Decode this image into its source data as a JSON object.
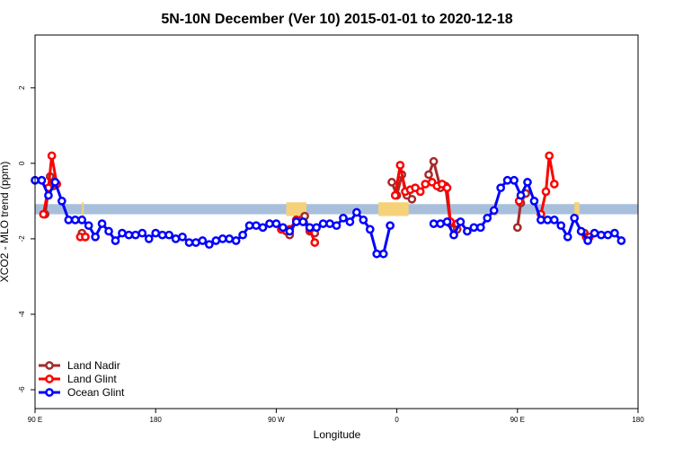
{
  "chart_data": {
    "type": "line",
    "title": "5N-10N December (Ver 10)   2015-01-01 to 2020-12-18",
    "xlabel": "Longitude",
    "ylabel": "XCO2 - MLO trend (ppm)",
    "xlim": [
      -90,
      270
    ],
    "ylim": [
      -6.5,
      3.4
    ],
    "x_ticks": [
      {
        "value": -90,
        "label": "90 E"
      },
      {
        "value": -18,
        "label": "180"
      },
      {
        "value": 54,
        "label": "90 W"
      },
      {
        "value": 126,
        "label": "0"
      },
      {
        "value": 198,
        "label": "90 E"
      },
      {
        "value": 270,
        "label": "180"
      }
    ],
    "y_ticks": [
      {
        "value": 2,
        "label": "2"
      },
      {
        "value": 0,
        "label": "0"
      },
      {
        "value": -2,
        "label": "-2"
      },
      {
        "value": -4,
        "label": "-4"
      },
      {
        "value": -6,
        "label": "-6"
      }
    ],
    "band": {
      "y0": -1.35,
      "y1": -1.08,
      "color": "#a8bfdc"
    },
    "land_segments": [
      {
        "x0": -62,
        "x1": -61,
        "color": "#f5d27a"
      },
      {
        "x0": 60,
        "x1": 72,
        "color": "#f5d27a"
      },
      {
        "x0": 115,
        "x1": 133,
        "color": "#f5d27a"
      },
      {
        "x0": 184,
        "x1": 186,
        "color": "#f5d27a"
      },
      {
        "x0": 232,
        "x1": 235,
        "color": "#f5d27a"
      }
    ],
    "legend": {
      "position": "bottom-left"
    },
    "series": [
      {
        "name": "Land Nadir",
        "color": "#a52a2a",
        "points": [
          [
            -84,
            -1.35
          ],
          [
            -81,
            -0.35
          ],
          [
            -79,
            -0.6
          ],
          [
            -62,
            -1.85
          ],
          [
            -60,
            -1.95
          ],
          [
            60,
            -1.8
          ],
          [
            62,
            -1.9
          ],
          [
            66,
            -1.5
          ],
          [
            69,
            -1.5
          ],
          [
            71,
            -1.4
          ],
          [
            74,
            -1.8
          ],
          [
            77,
            -1.85
          ],
          [
            123,
            -0.5
          ],
          [
            126,
            -0.85
          ],
          [
            129,
            -0.3
          ],
          [
            132,
            -0.85
          ],
          [
            135,
            -0.95
          ],
          [
            145,
            -0.3
          ],
          [
            148,
            0.05
          ],
          [
            152,
            -0.65
          ],
          [
            155,
            -0.6
          ],
          [
            158,
            -1.6
          ],
          [
            162,
            -1.75
          ],
          [
            198,
            -1.7
          ],
          [
            200,
            -1.05
          ],
          [
            203,
            -0.8
          ],
          [
            238,
            -1.85
          ],
          [
            240,
            -1.95
          ]
        ]
      },
      {
        "name": "Land Glint",
        "color": "#ff0000",
        "points": [
          [
            -85,
            -1.35
          ],
          [
            -82,
            -0.65
          ],
          [
            -80,
            0.2
          ],
          [
            -77,
            -0.55
          ],
          [
            -63,
            -1.95
          ],
          [
            -60,
            -1.95
          ],
          [
            57,
            -1.75
          ],
          [
            62,
            -1.75
          ],
          [
            66,
            -1.5
          ],
          [
            70,
            -1.55
          ],
          [
            74,
            -1.75
          ],
          [
            77,
            -2.1
          ],
          [
            125,
            -0.85
          ],
          [
            128,
            -0.05
          ],
          [
            131,
            -0.75
          ],
          [
            134,
            -0.7
          ],
          [
            137,
            -0.65
          ],
          [
            140,
            -0.75
          ],
          [
            143,
            -0.55
          ],
          [
            147,
            -0.5
          ],
          [
            150,
            -0.6
          ],
          [
            153,
            -0.55
          ],
          [
            156,
            -0.65
          ],
          [
            158,
            -1.55
          ],
          [
            162,
            -1.6
          ],
          [
            199,
            -1.0
          ],
          [
            212,
            -1.35
          ],
          [
            215,
            -0.75
          ],
          [
            217,
            0.2
          ],
          [
            220,
            -0.55
          ],
          [
            239,
            -1.95
          ],
          [
            241,
            -1.95
          ]
        ]
      },
      {
        "name": "Ocean Glint",
        "color": "#0000ff",
        "points": [
          [
            -90,
            -0.45
          ],
          [
            -86,
            -0.45
          ],
          [
            -82,
            -0.85
          ],
          [
            -78,
            -0.5
          ],
          [
            -74,
            -1.0
          ],
          [
            -70,
            -1.5
          ],
          [
            -66,
            -1.5
          ],
          [
            -62,
            -1.5
          ],
          [
            -58,
            -1.65
          ],
          [
            -54,
            -1.95
          ],
          [
            -50,
            -1.6
          ],
          [
            -46,
            -1.8
          ],
          [
            -42,
            -2.05
          ],
          [
            -38,
            -1.85
          ],
          [
            -34,
            -1.9
          ],
          [
            -30,
            -1.9
          ],
          [
            -26,
            -1.85
          ],
          [
            -22,
            -2.0
          ],
          [
            -18,
            -1.85
          ],
          [
            -14,
            -1.9
          ],
          [
            -10,
            -1.9
          ],
          [
            -6,
            -2.0
          ],
          [
            -2,
            -1.95
          ],
          [
            2,
            -2.1
          ],
          [
            6,
            -2.1
          ],
          [
            10,
            -2.05
          ],
          [
            14,
            -2.15
          ],
          [
            18,
            -2.05
          ],
          [
            22,
            -2.0
          ],
          [
            26,
            -2.0
          ],
          [
            30,
            -2.05
          ],
          [
            34,
            -1.9
          ],
          [
            38,
            -1.65
          ],
          [
            42,
            -1.65
          ],
          [
            46,
            -1.7
          ],
          [
            50,
            -1.6
          ],
          [
            54,
            -1.6
          ],
          [
            58,
            -1.7
          ],
          [
            62,
            -1.8
          ],
          [
            66,
            -1.55
          ],
          [
            70,
            -1.55
          ],
          [
            74,
            -1.7
          ],
          [
            78,
            -1.7
          ],
          [
            82,
            -1.6
          ],
          [
            86,
            -1.6
          ],
          [
            90,
            -1.65
          ],
          [
            94,
            -1.45
          ],
          [
            98,
            -1.55
          ],
          [
            102,
            -1.3
          ],
          [
            106,
            -1.5
          ],
          [
            110,
            -1.75
          ],
          [
            114,
            -2.4
          ],
          [
            118,
            -2.4
          ],
          [
            122,
            -1.65
          ],
          [
            148,
            -1.6
          ],
          [
            152,
            -1.6
          ],
          [
            156,
            -1.55
          ],
          [
            160,
            -1.9
          ],
          [
            164,
            -1.55
          ],
          [
            168,
            -1.8
          ],
          [
            172,
            -1.7
          ],
          [
            176,
            -1.7
          ],
          [
            180,
            -1.45
          ],
          [
            184,
            -1.25
          ],
          [
            188,
            -0.65
          ],
          [
            192,
            -0.45
          ],
          [
            196,
            -0.45
          ],
          [
            200,
            -0.85
          ],
          [
            204,
            -0.5
          ],
          [
            208,
            -1.0
          ],
          [
            212,
            -1.5
          ],
          [
            216,
            -1.5
          ],
          [
            220,
            -1.5
          ],
          [
            224,
            -1.65
          ],
          [
            228,
            -1.95
          ],
          [
            232,
            -1.45
          ],
          [
            236,
            -1.8
          ],
          [
            240,
            -2.05
          ],
          [
            244,
            -1.85
          ],
          [
            248,
            -1.9
          ],
          [
            252,
            -1.9
          ],
          [
            256,
            -1.85
          ],
          [
            260,
            -2.05
          ]
        ]
      }
    ]
  }
}
